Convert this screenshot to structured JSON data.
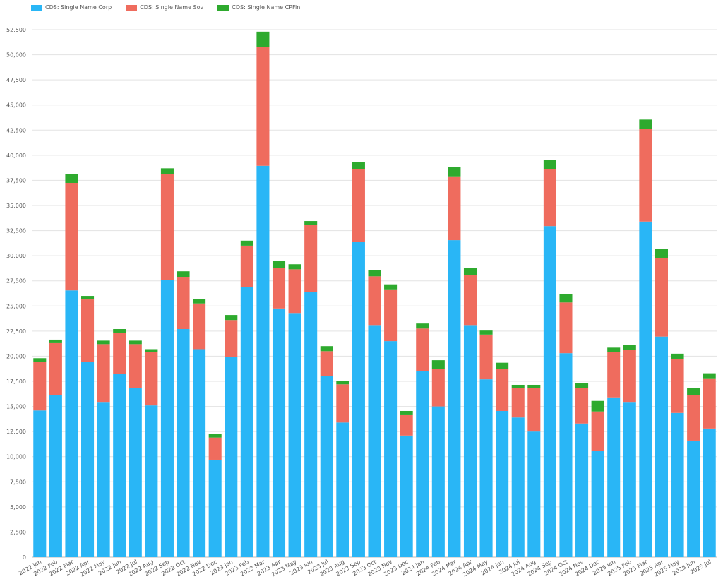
{
  "chart_data": {
    "type": "bar",
    "stacked": true,
    "title": "",
    "xlabel": "",
    "ylabel": "",
    "ylim": [
      0,
      52500
    ],
    "ytick_step": 2500,
    "grid": true,
    "legend_position": "top-left",
    "categories": [
      "2022 Jan",
      "2022 Feb",
      "2022 Mar",
      "2022 Apr",
      "2022 May",
      "2022 Jun",
      "2022 Jul",
      "2022 Aug",
      "2022 Sep",
      "2022 Oct",
      "2022 Nov",
      "2022 Dec",
      "2023 Jan",
      "2023 Feb",
      "2023 Mar",
      "2023 Apr",
      "2023 May",
      "2023 Jun",
      "2023 Jul",
      "2023 Aug",
      "2023 Sep",
      "2023 Oct",
      "2023 Nov",
      "2023 Dec",
      "2024 Jan",
      "2024 Feb",
      "2024 Mar",
      "2024 Apr",
      "2024 May",
      "2024 Jun",
      "2024 Jul",
      "2024 Aug",
      "2024 Sep",
      "2024 Oct",
      "2024 Nov",
      "2024 Dec",
      "2025 Jan",
      "2025 Feb",
      "2025 Mar",
      "2025 Apr",
      "2025 May",
      "2025 Jun",
      "2025 Jul"
    ],
    "series": [
      {
        "name": "CDS: Single Name Corp",
        "color": "#29b6f6",
        "values": [
          14600,
          16150,
          26550,
          19400,
          15450,
          18250,
          16850,
          15100,
          27600,
          22700,
          20700,
          9700,
          19900,
          26850,
          38950,
          24750,
          24300,
          26400,
          18000,
          13400,
          31350,
          23100,
          21500,
          12100,
          18500,
          15000,
          31550,
          23100,
          17700,
          14550,
          13900,
          12500,
          32950,
          20300,
          13300,
          10600,
          15900,
          15450,
          33400,
          21950,
          14350,
          11600,
          12800
        ]
      },
      {
        "name": "CDS: Single Name Sov",
        "color": "#ef6c5e",
        "values": [
          4850,
          5150,
          10700,
          6250,
          5750,
          4100,
          4350,
          5350,
          10550,
          5200,
          4550,
          2200,
          3700,
          4150,
          11850,
          4000,
          4350,
          6650,
          2500,
          3800,
          7300,
          4850,
          5150,
          2100,
          4250,
          3750,
          6350,
          5000,
          4450,
          4200,
          2900,
          4300,
          5650,
          5050,
          3500,
          3900,
          4550,
          5200,
          9200,
          7850,
          5400,
          4550,
          5000
        ]
      },
      {
        "name": "CDS: Single Name CPFin",
        "color": "#2eaa2e",
        "values": [
          350,
          350,
          850,
          350,
          350,
          350,
          350,
          250,
          550,
          550,
          450,
          350,
          500,
          500,
          1500,
          700,
          500,
          400,
          500,
          350,
          650,
          600,
          500,
          350,
          500,
          850,
          950,
          650,
          400,
          600,
          350,
          350,
          900,
          800,
          500,
          1050,
          400,
          450,
          950,
          850,
          500,
          700,
          500
        ]
      }
    ]
  }
}
